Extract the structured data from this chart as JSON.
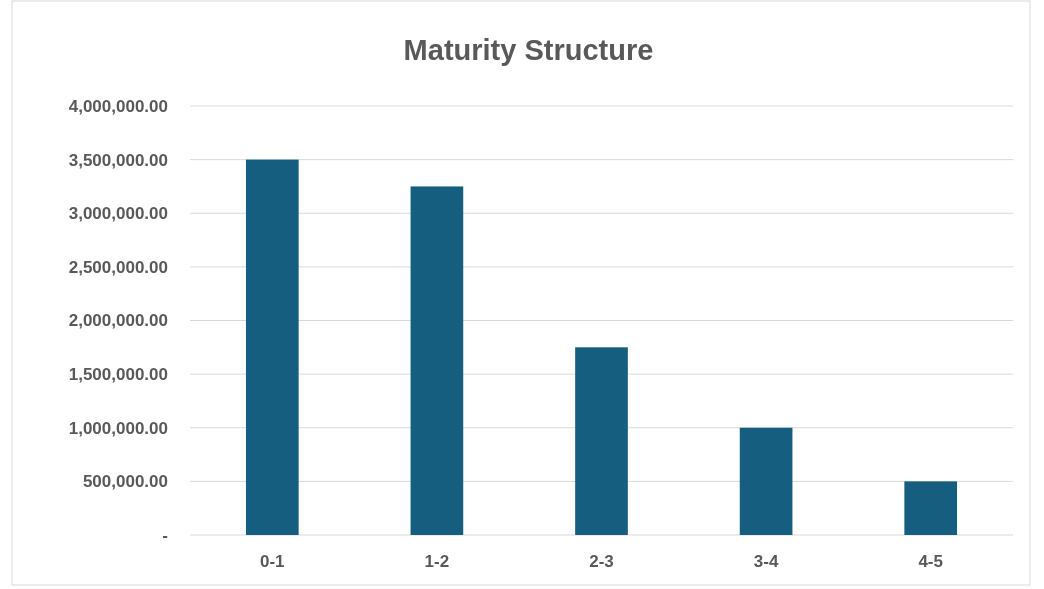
{
  "chart_data": {
    "type": "bar",
    "title": "Maturity Structure",
    "categories": [
      "0-1",
      "1-2",
      "2-3",
      "3-4",
      "4-5"
    ],
    "values": [
      3500000,
      3250000,
      1750000,
      1000000,
      500000
    ],
    "color": "#155e80",
    "ylim": [
      0,
      4000000
    ],
    "yticks": [
      {
        "value": 0,
        "label": "-"
      },
      {
        "value": 500000,
        "label": "500,000.00"
      },
      {
        "value": 1000000,
        "label": "1,000,000.00"
      },
      {
        "value": 1500000,
        "label": "1,500,000.00"
      },
      {
        "value": 2000000,
        "label": "2,000,000.00"
      },
      {
        "value": 2500000,
        "label": "2,500,000.00"
      },
      {
        "value": 3000000,
        "label": "3,000,000.00"
      },
      {
        "value": 3500000,
        "label": "3,500,000.00"
      },
      {
        "value": 4000000,
        "label": "4,000,000.00"
      }
    ],
    "grid": "y"
  }
}
